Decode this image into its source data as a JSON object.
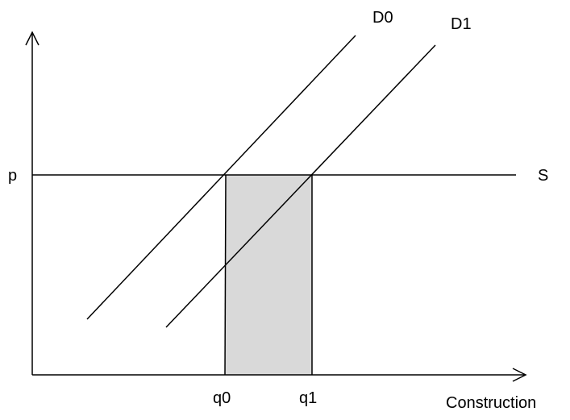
{
  "diagram": {
    "labels": {
      "price": "p",
      "supply": "S",
      "demand_0": "D0",
      "demand_1": "D1",
      "quantity_0": "q0",
      "quantity_1": "q1",
      "x_axis": "Construction"
    },
    "colors": {
      "line": "#000000",
      "shaded_area": "#d9d9d9",
      "background": "#ffffff"
    }
  }
}
